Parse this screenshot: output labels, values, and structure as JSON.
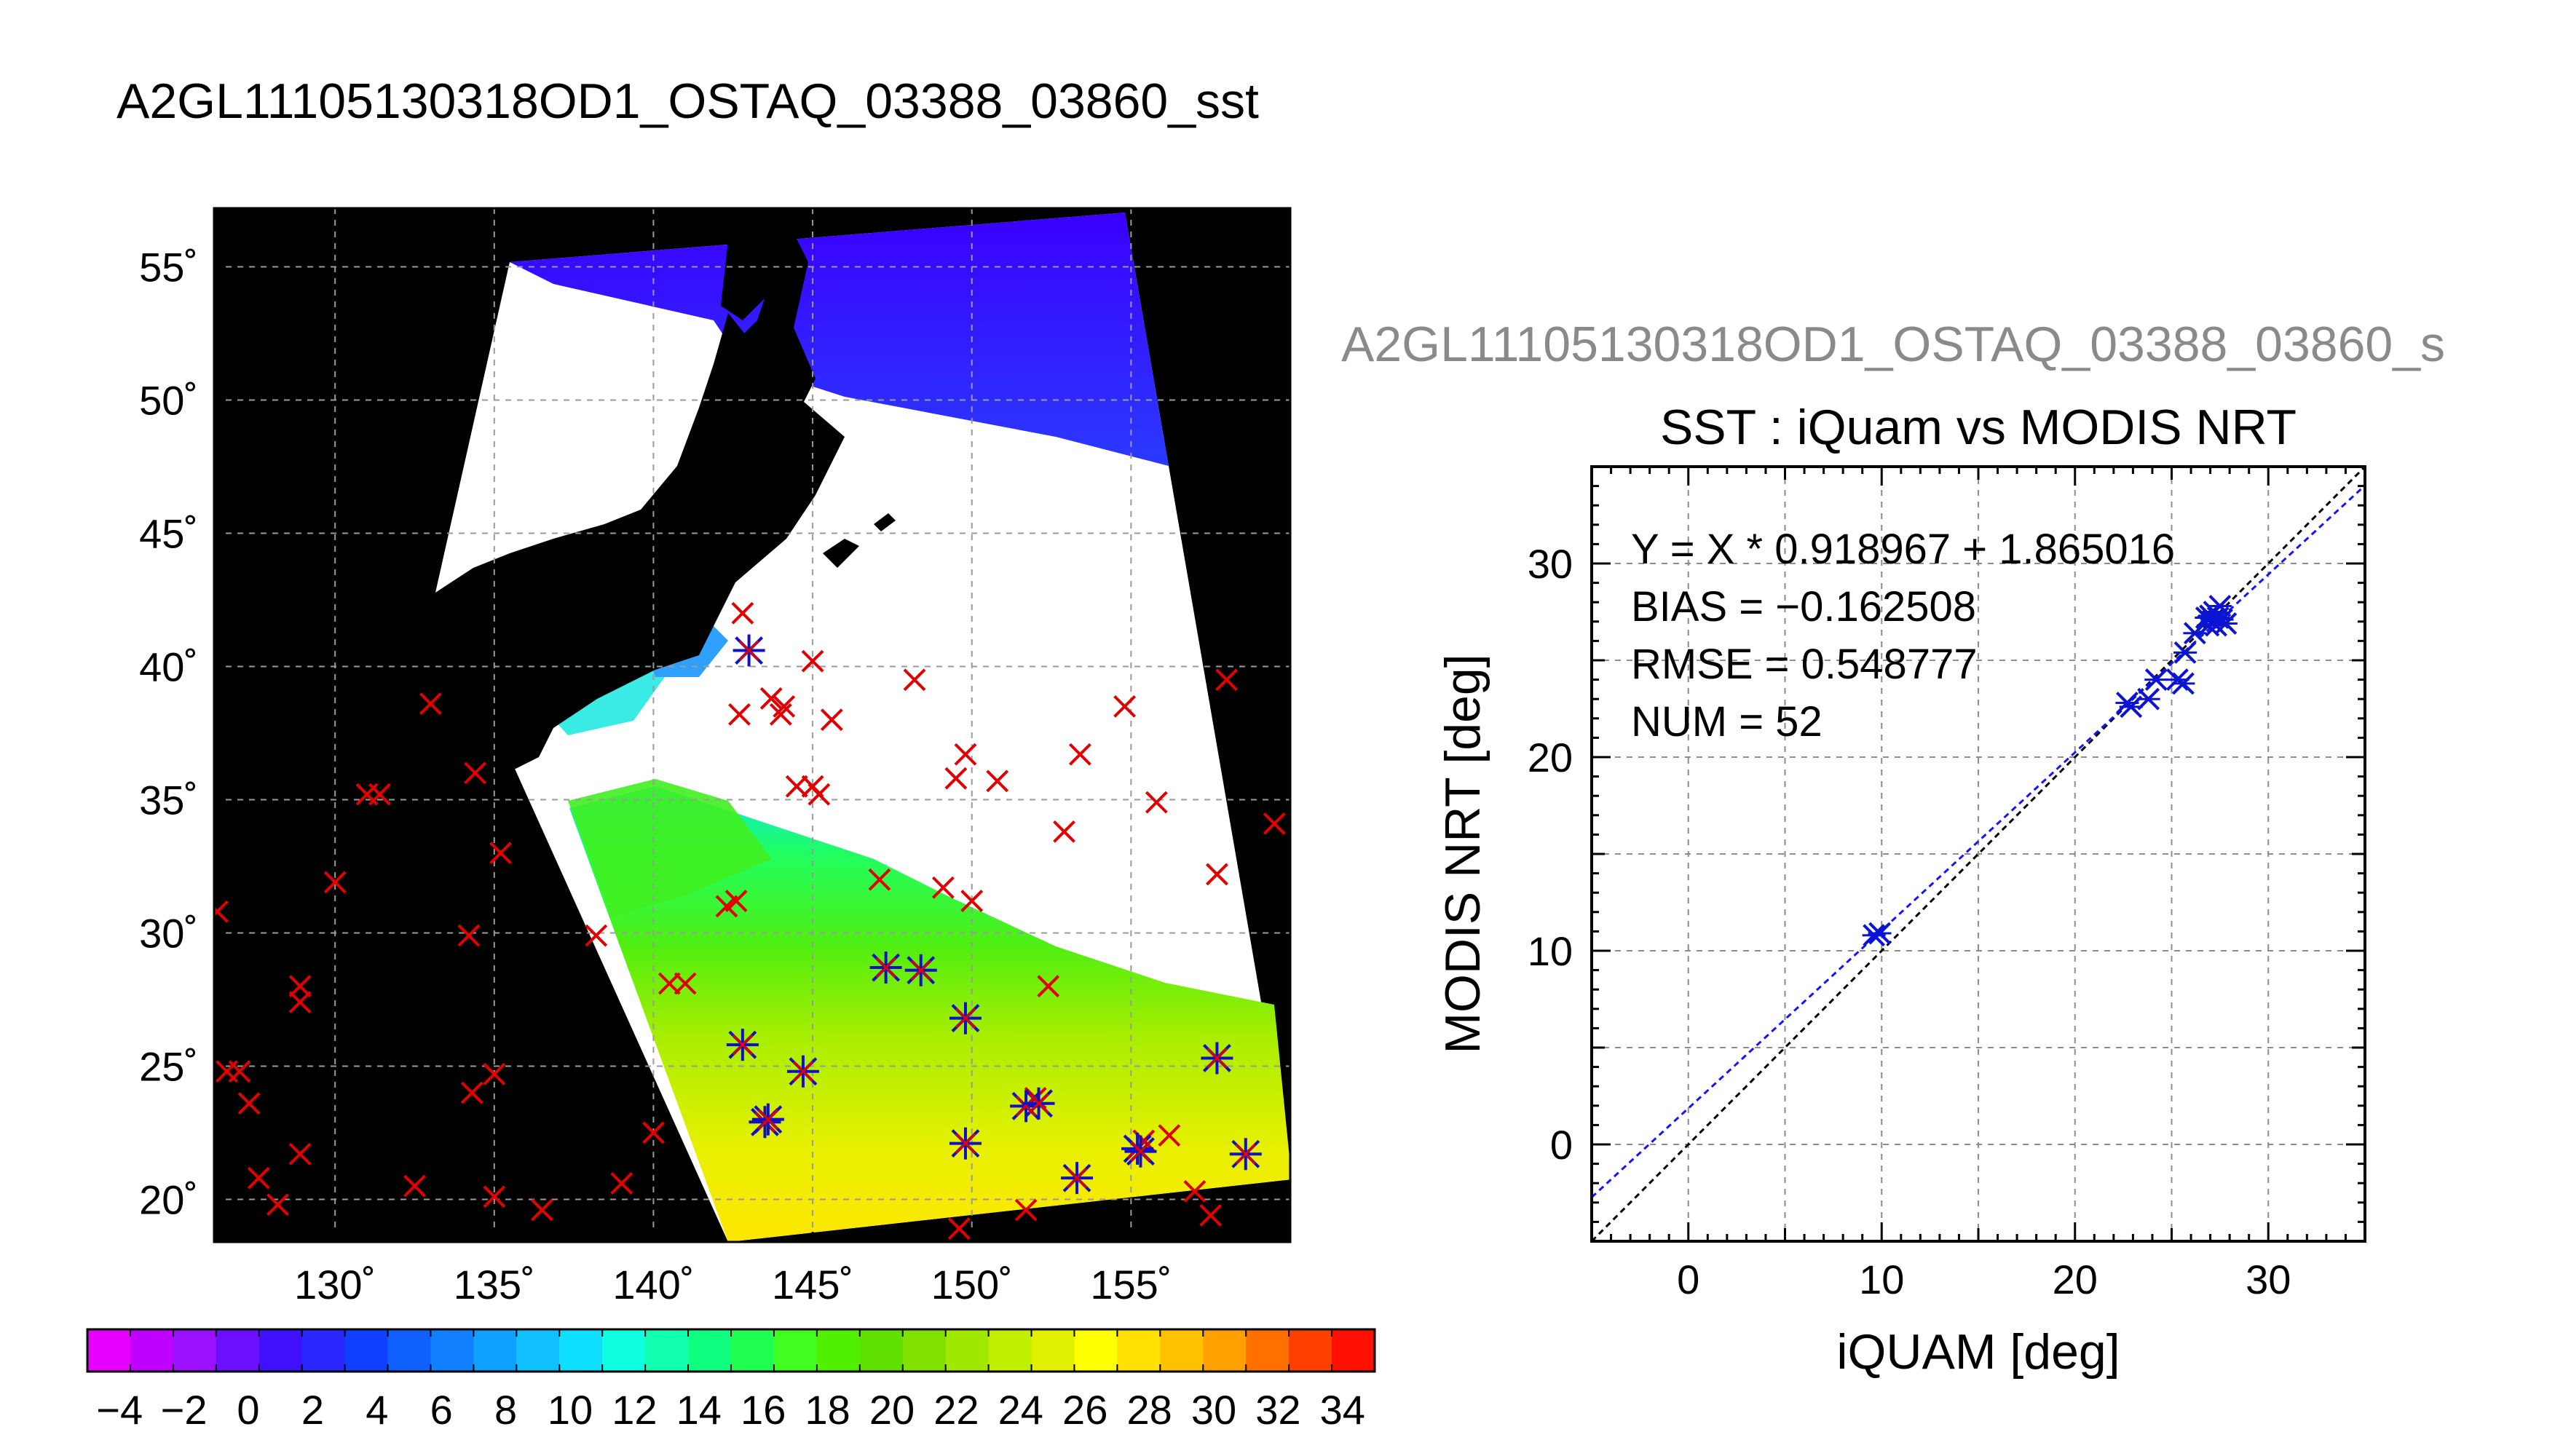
{
  "main_title": "A2GL11105130318OD1_OSTAQ_03388_03860_sst",
  "map": {
    "lon_labels": [
      "130˚",
      "135˚",
      "140˚",
      "145˚",
      "150˚",
      "155˚"
    ],
    "lat_labels": [
      "55˚",
      "50˚",
      "45˚",
      "40˚",
      "35˚",
      "30˚",
      "25˚",
      "20˚"
    ],
    "lon_values": [
      130,
      135,
      140,
      145,
      150,
      155
    ],
    "lat_values": [
      55,
      50,
      45,
      40,
      35,
      30,
      25,
      20
    ],
    "lon_range": [
      126.2,
      160.0
    ],
    "lat_range": [
      18.4,
      57.2
    ],
    "colors": {
      "background": "#000000",
      "cloud": "#ffffff",
      "iquam_marker": "#e00000",
      "match_marker": "#1010c8"
    },
    "iquam_points": [
      [
        126.3,
        30.8
      ],
      [
        126.6,
        24.8
      ],
      [
        127.0,
        24.8
      ],
      [
        127.3,
        23.6
      ],
      [
        127.6,
        20.8
      ],
      [
        128.2,
        19.8
      ],
      [
        128.9,
        21.7
      ],
      [
        128.9,
        28.0
      ],
      [
        128.9,
        27.4
      ],
      [
        130.0,
        31.9
      ],
      [
        131.0,
        35.2
      ],
      [
        131.4,
        35.2
      ],
      [
        132.5,
        20.5
      ],
      [
        133.0,
        38.6
      ],
      [
        134.2,
        29.9
      ],
      [
        134.3,
        24.0
      ],
      [
        134.4,
        36.0
      ],
      [
        135.0,
        20.1
      ],
      [
        135.0,
        24.7
      ],
      [
        135.2,
        33.0
      ],
      [
        136.5,
        19.6
      ],
      [
        138.2,
        29.9
      ],
      [
        139.0,
        20.6
      ],
      [
        140.0,
        22.5
      ],
      [
        140.5,
        28.1
      ],
      [
        141.0,
        28.1
      ],
      [
        142.3,
        31.0
      ],
      [
        142.6,
        31.2
      ],
      [
        142.7,
        38.2
      ],
      [
        142.8,
        42.0
      ],
      [
        143.7,
        38.8
      ],
      [
        144.0,
        38.2
      ],
      [
        144.1,
        38.5
      ],
      [
        144.5,
        35.5
      ],
      [
        145.0,
        35.5
      ],
      [
        145.0,
        40.2
      ],
      [
        145.2,
        35.2
      ],
      [
        145.6,
        38.0
      ],
      [
        147.1,
        32.0
      ],
      [
        148.2,
        39.5
      ],
      [
        149.1,
        31.7
      ],
      [
        149.5,
        35.8
      ],
      [
        149.8,
        36.7
      ],
      [
        150.0,
        31.2
      ],
      [
        150.8,
        35.7
      ],
      [
        152.4,
        28.0
      ],
      [
        152.9,
        33.8
      ],
      [
        153.4,
        36.7
      ],
      [
        154.8,
        38.5
      ],
      [
        155.4,
        22.2
      ],
      [
        155.8,
        34.9
      ],
      [
        156.2,
        22.4
      ],
      [
        157.0,
        20.3
      ],
      [
        157.5,
        19.4
      ],
      [
        157.7,
        32.2
      ],
      [
        158.0,
        39.5
      ],
      [
        159.5,
        34.1
      ],
      [
        149.6,
        18.9
      ],
      [
        151.7,
        19.6
      ],
      [
        152.0,
        23.8
      ]
    ],
    "match_points": [
      [
        142.8,
        25.8
      ],
      [
        143.0,
        40.6
      ],
      [
        143.5,
        22.9
      ],
      [
        143.6,
        23.0
      ],
      [
        144.7,
        24.8
      ],
      [
        147.3,
        28.7
      ],
      [
        148.4,
        28.6
      ],
      [
        149.8,
        22.1
      ],
      [
        149.8,
        26.8
      ],
      [
        151.7,
        23.5
      ],
      [
        152.1,
        23.6
      ],
      [
        153.3,
        20.8
      ],
      [
        155.2,
        21.9
      ],
      [
        155.3,
        21.8
      ],
      [
        157.7,
        25.3
      ],
      [
        158.6,
        21.7
      ]
    ]
  },
  "colorbar": {
    "tick_labels": [
      "−4",
      "−2",
      "0",
      "2",
      "4",
      "6",
      "8",
      "10",
      "12",
      "14",
      "16",
      "18",
      "20",
      "22",
      "24",
      "26",
      "28",
      "30",
      "32",
      "34"
    ],
    "range": [
      -5,
      35
    ],
    "colors": [
      "#e600ff",
      "#c000ff",
      "#9a10ff",
      "#6a10ff",
      "#4010ff",
      "#2a28ff",
      "#1040ff",
      "#1060ff",
      "#1080ff",
      "#10a0ff",
      "#10c0ff",
      "#10e0ff",
      "#10ffe0",
      "#10ffb0",
      "#10ff80",
      "#20ff50",
      "#40ff20",
      "#50f000",
      "#60e000",
      "#80e000",
      "#a0e800",
      "#c0f000",
      "#e0f000",
      "#ffff00",
      "#ffe000",
      "#ffc000",
      "#ffa000",
      "#ff7000",
      "#ff4000",
      "#ff1000"
    ]
  },
  "scatter": {
    "subtitle": "A2GL11105130318OD1_OSTAQ_03388_03860_s",
    "title": "SST : iQuam vs MODIS NRT",
    "xlabel": "iQUAM [deg]",
    "ylabel": "MODIS NRT [deg]",
    "stats": [
      "Y = X * 0.918967 + 1.865016",
      "BIAS = −0.162508",
      "RMSE = 0.548777",
      "NUM = 52"
    ],
    "x_tick_labels": [
      "0",
      "10",
      "20",
      "30"
    ],
    "y_tick_labels": [
      "0",
      "10",
      "20",
      "30"
    ]
  },
  "chart_data": {
    "type": "scatter",
    "title": "SST : iQuam vs MODIS NRT",
    "xlabel": "iQUAM [deg]",
    "ylabel": "MODIS NRT [deg]",
    "xlim": [
      -5,
      35
    ],
    "ylim": [
      -5,
      35
    ],
    "grid": true,
    "fit": {
      "slope": 0.918967,
      "intercept": 1.865016
    },
    "colors": {
      "points": "#0a14d2",
      "fit_line": "#1414ff",
      "identity_line": "#000000"
    },
    "x": [
      9.6,
      9.9,
      22.7,
      22.9,
      23.8,
      24.2,
      25.3,
      25.6,
      25.7,
      26.2,
      26.8,
      26.9,
      27.0,
      27.1,
      27.2,
      27.3,
      27.4,
      27.5,
      27.6,
      27.8
    ],
    "y": [
      10.8,
      10.9,
      22.8,
      22.6,
      23.0,
      24.0,
      24.0,
      23.8,
      25.4,
      26.4,
      27.2,
      26.8,
      27.3,
      27.0,
      27.5,
      26.8,
      27.2,
      27.8,
      27.1,
      26.9
    ]
  }
}
